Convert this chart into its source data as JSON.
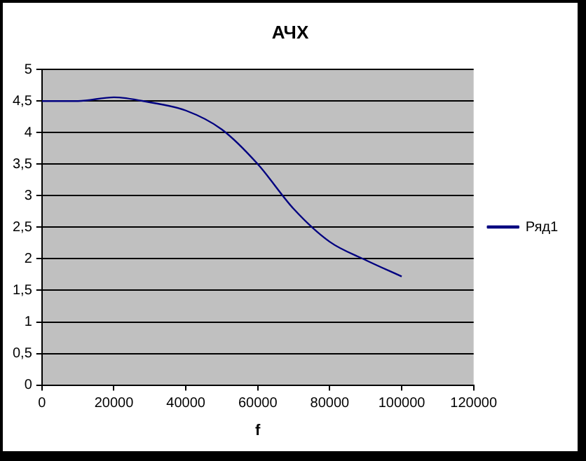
{
  "chart_data": {
    "type": "line",
    "title": "АЧХ",
    "xlabel": "f",
    "x": [
      0,
      10000,
      20000,
      30000,
      40000,
      50000,
      60000,
      70000,
      80000,
      90000,
      100000
    ],
    "series": [
      {
        "name": "Ряд1",
        "color": "#000080",
        "values": [
          4.5,
          4.5,
          4.56,
          4.48,
          4.35,
          4.05,
          3.5,
          2.79,
          2.27,
          1.98,
          1.72
        ]
      }
    ],
    "xlim": [
      0,
      120000
    ],
    "xticks": [
      0,
      20000,
      40000,
      60000,
      80000,
      100000,
      120000
    ],
    "ylim": [
      0,
      5
    ],
    "yticks": [
      {
        "value": 0,
        "label": "0"
      },
      {
        "value": 0.5,
        "label": "0,5"
      },
      {
        "value": 1,
        "label": "1"
      },
      {
        "value": 1.5,
        "label": "1,5"
      },
      {
        "value": 2,
        "label": "2"
      },
      {
        "value": 2.5,
        "label": "2,5"
      },
      {
        "value": 3,
        "label": "3"
      },
      {
        "value": 3.5,
        "label": "3,5"
      },
      {
        "value": 4,
        "label": "4"
      },
      {
        "value": 4.5,
        "label": "4,5"
      },
      {
        "value": 5,
        "label": "5"
      }
    ],
    "grid": "y",
    "legend": "right",
    "marker": "none",
    "line_style": "solid"
  }
}
